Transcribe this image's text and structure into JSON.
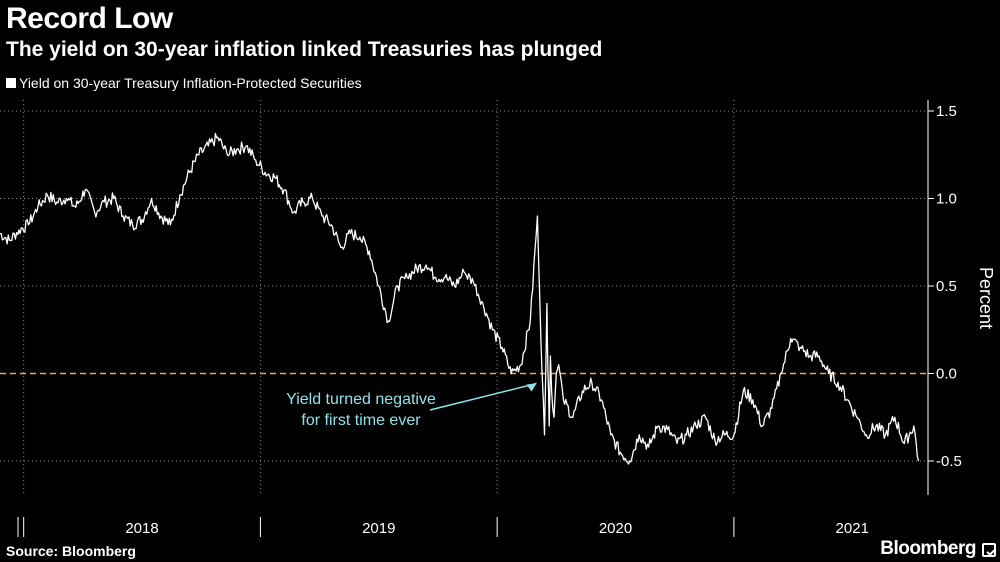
{
  "header": {
    "title": "Record Low",
    "subtitle": "The yield on 30-year inflation linked Treasuries has plunged"
  },
  "footer": {
    "source": "Source: Bloomberg",
    "brand": "Bloomberg"
  },
  "colors": {
    "background": "#000000",
    "series": "#ffffff",
    "zero_line": "#f0a050",
    "annotation": "#8fe3e8",
    "grid": "#888888"
  },
  "chart_data": {
    "type": "line",
    "title": "Record Low",
    "subtitle": "The yield on 30-year inflation linked Treasuries has plunged",
    "xlabel": "",
    "ylabel": "Percent",
    "ylim": [
      -0.7,
      1.6
    ],
    "yticks": [
      1.5,
      1.0,
      0.5,
      0.0,
      -0.5
    ],
    "ytick_labels": [
      "1.5",
      "1.0",
      "0.5",
      "0.0",
      "-0.5"
    ],
    "xlim": [
      2017.9,
      2021.82
    ],
    "year_labels": [
      "2018",
      "2019",
      "2020",
      "2021"
    ],
    "year_label_x": [
      2018.5,
      2019.5,
      2020.5,
      2021.5
    ],
    "year_boundaries": [
      2018.0,
      2019.0,
      2020.0,
      2021.0
    ],
    "grid": true,
    "legend": [
      "Yield on 30-year Treasury Inflation-Protected Securities"
    ],
    "legend_position": "top-left",
    "reference_line": {
      "y": 0.0,
      "style": "dashed"
    },
    "annotation": {
      "text": [
        "Yield turned negative",
        "for first time ever"
      ],
      "points_to": {
        "x": 2020.2,
        "y": 0.0
      }
    },
    "series": [
      {
        "name": "Yield on 30-year Treasury Inflation-Protected Securities",
        "x": [
          2017.9,
          2017.94,
          2017.98,
          2018.02,
          2018.06,
          2018.1,
          2018.14,
          2018.18,
          2018.22,
          2018.26,
          2018.3,
          2018.34,
          2018.38,
          2018.42,
          2018.46,
          2018.5,
          2018.54,
          2018.58,
          2018.62,
          2018.66,
          2018.7,
          2018.74,
          2018.78,
          2018.82,
          2018.86,
          2018.9,
          2018.94,
          2018.98,
          2019.02,
          2019.06,
          2019.1,
          2019.14,
          2019.18,
          2019.22,
          2019.26,
          2019.3,
          2019.34,
          2019.38,
          2019.42,
          2019.46,
          2019.5,
          2019.54,
          2019.58,
          2019.62,
          2019.66,
          2019.7,
          2019.74,
          2019.78,
          2019.82,
          2019.86,
          2019.9,
          2019.94,
          2019.98,
          2020.02,
          2020.06,
          2020.1,
          2020.14,
          2020.17,
          2020.19,
          2020.2,
          2020.21,
          2020.215,
          2020.22,
          2020.225,
          2020.23,
          2020.24,
          2020.25,
          2020.26,
          2020.28,
          2020.32,
          2020.36,
          2020.4,
          2020.44,
          2020.48,
          2020.52,
          2020.56,
          2020.6,
          2020.64,
          2020.68,
          2020.72,
          2020.76,
          2020.8,
          2020.84,
          2020.88,
          2020.92,
          2020.96,
          2021.0,
          2021.04,
          2021.08,
          2021.12,
          2021.16,
          2021.2,
          2021.24,
          2021.28,
          2021.32,
          2021.36,
          2021.4,
          2021.44,
          2021.48,
          2021.52,
          2021.56,
          2021.6,
          2021.64,
          2021.68,
          2021.72,
          2021.76,
          2021.78
        ],
        "values": [
          0.8,
          0.76,
          0.82,
          0.85,
          0.95,
          1.02,
          0.98,
          1.0,
          0.95,
          1.05,
          0.92,
          0.98,
          1.0,
          0.9,
          0.85,
          0.88,
          1.0,
          0.9,
          0.85,
          1.02,
          1.15,
          1.25,
          1.3,
          1.35,
          1.25,
          1.28,
          1.3,
          1.22,
          1.15,
          1.12,
          1.05,
          0.92,
          0.98,
          1.0,
          0.9,
          0.85,
          0.72,
          0.8,
          0.78,
          0.7,
          0.5,
          0.3,
          0.5,
          0.55,
          0.6,
          0.62,
          0.55,
          0.55,
          0.5,
          0.58,
          0.52,
          0.4,
          0.25,
          0.15,
          0.0,
          0.05,
          0.3,
          0.9,
          0.0,
          -0.35,
          0.4,
          0.0,
          -0.3,
          0.1,
          -0.1,
          -0.25,
          0.0,
          0.05,
          -0.15,
          -0.25,
          -0.1,
          -0.05,
          -0.15,
          -0.35,
          -0.45,
          -0.5,
          -0.35,
          -0.42,
          -0.3,
          -0.32,
          -0.4,
          -0.35,
          -0.3,
          -0.25,
          -0.38,
          -0.35,
          -0.35,
          -0.1,
          -0.15,
          -0.3,
          -0.2,
          0.0,
          0.2,
          0.15,
          0.1,
          0.1,
          0.0,
          -0.05,
          -0.15,
          -0.25,
          -0.35,
          -0.3,
          -0.35,
          -0.25,
          -0.4,
          -0.3,
          -0.5
        ]
      }
    ]
  }
}
